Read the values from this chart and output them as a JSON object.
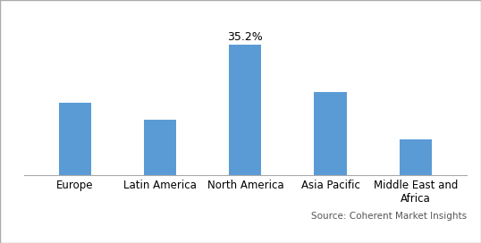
{
  "categories": [
    "Europe",
    "Latin America",
    "North America",
    "Asia Pacific",
    "Middle East and\nAfrica"
  ],
  "values": [
    19.5,
    15.0,
    35.2,
    22.5,
    9.5
  ],
  "label_value": "35.2%",
  "label_index": 2,
  "source_text": "Source: Coherent Market Insights",
  "ylim": [
    0,
    42
  ],
  "bar_width": 0.38,
  "background_color": "#ffffff",
  "bar_color": "#5B9BD5",
  "axis_fontsize": 8.5,
  "source_fontsize": 7.5,
  "label_fontsize": 9
}
